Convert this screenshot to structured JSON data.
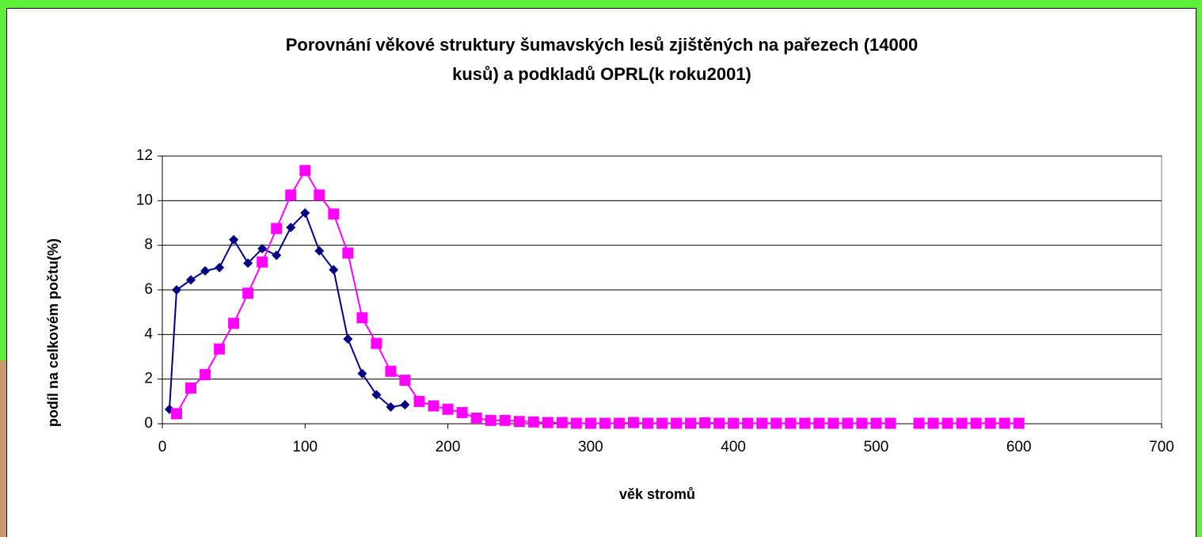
{
  "chart_data": {
    "type": "line",
    "title": [
      "Porovnání věkové struktury šumavských lesů zjištěných na pařezech (14000",
      "kusů) a podkladů OPRL(k roku2001)"
    ],
    "x_label": "věk stromů",
    "y_label": "podíl na celkovém počtu(%)",
    "xlim": [
      0,
      700
    ],
    "xticks": [
      0,
      100,
      200,
      300,
      400,
      500,
      600,
      700
    ],
    "ylim": [
      0,
      12
    ],
    "yticks": [
      0,
      2,
      4,
      6,
      8,
      10,
      12
    ],
    "grid": true,
    "series": [
      {
        "color": "#000080",
        "marker": "diamond",
        "x": [
          5,
          10,
          20,
          30,
          40,
          50,
          60,
          70,
          80,
          90,
          100,
          110,
          120,
          130,
          140,
          150,
          160,
          170
        ],
        "values": [
          0.65,
          6.0,
          6.45,
          6.85,
          7.0,
          8.25,
          7.2,
          7.85,
          7.55,
          8.8,
          9.45,
          7.75,
          6.9,
          3.8,
          2.25,
          1.3,
          0.75,
          0.85
        ]
      },
      {
        "color": "#ff00ff",
        "marker": "square",
        "x": [
          10,
          20,
          30,
          40,
          50,
          60,
          70,
          80,
          90,
          100,
          110,
          120,
          130,
          140,
          150,
          160,
          170,
          180,
          190,
          200,
          210,
          220,
          230,
          240,
          250,
          260,
          270,
          280,
          290,
          300,
          310,
          320,
          330,
          340,
          350,
          360,
          370,
          380,
          390,
          400,
          410,
          420,
          430,
          440,
          450,
          460,
          470,
          480,
          490,
          500,
          510,
          520,
          530,
          540,
          550,
          560,
          570,
          580,
          590,
          600
        ],
        "values": [
          0.45,
          1.6,
          2.2,
          3.35,
          4.5,
          5.85,
          7.25,
          8.75,
          10.25,
          11.35,
          10.25,
          9.4,
          7.65,
          4.75,
          3.6,
          2.35,
          1.95,
          1.0,
          0.8,
          0.65,
          0.5,
          0.25,
          0.15,
          0.15,
          0.1,
          0.08,
          0.05,
          0.05,
          0.02,
          0.02,
          0.02,
          0.02,
          0.05,
          0.02,
          0.02,
          0.02,
          0.02,
          0.04,
          0.02,
          0.02,
          0.02,
          0.02,
          0.02,
          0.02,
          0.02,
          0.02,
          0.02,
          0.02,
          0.02,
          0.02,
          0.02,
          null,
          0.02,
          0.02,
          0.02,
          0.02,
          0.02,
          0.02,
          0.02,
          0.02
        ]
      }
    ]
  }
}
